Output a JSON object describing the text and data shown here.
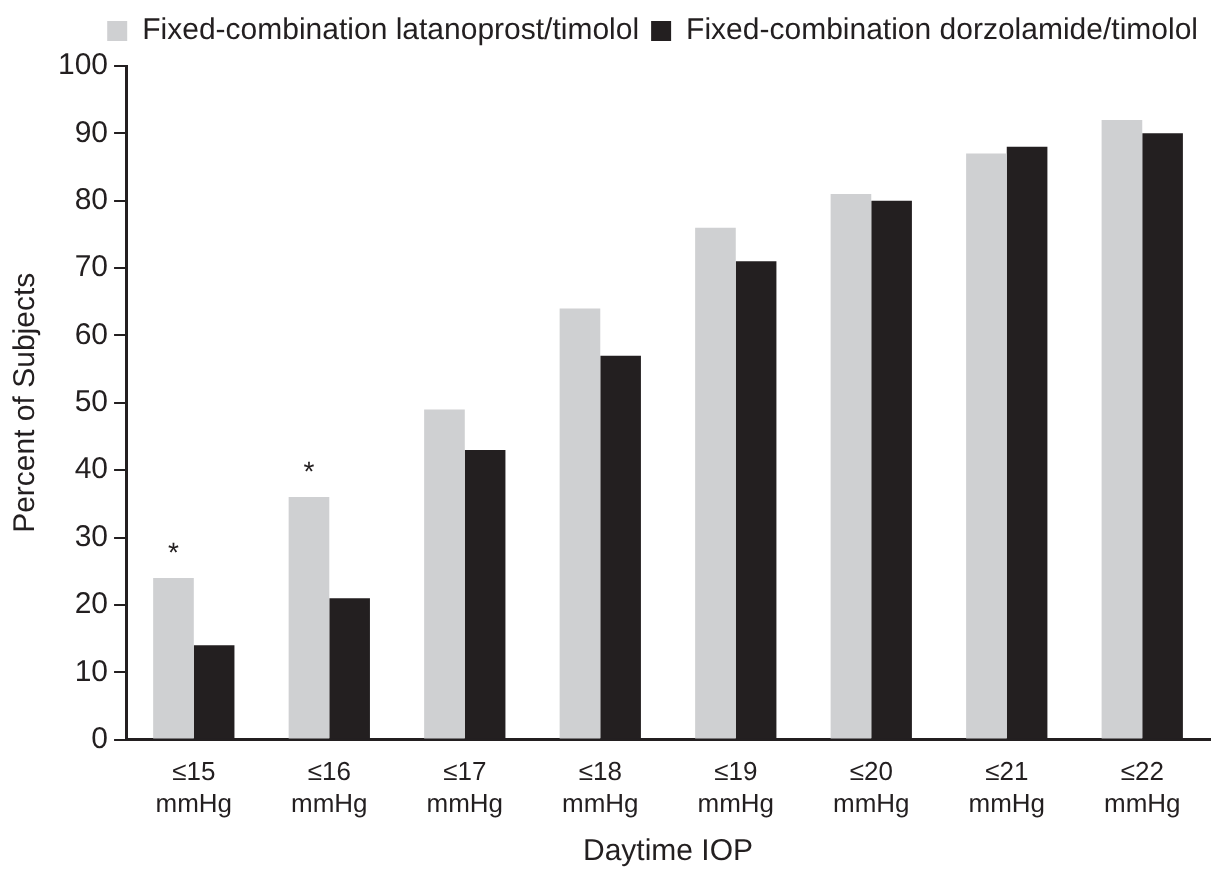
{
  "chart_data": {
    "type": "bar",
    "xlabel": "Daytime IOP",
    "ylabel": "Percent of Subjects",
    "categories": [
      "≤15 mmHg",
      "≤16 mmHg",
      "≤17 mmHg",
      "≤18 mmHg",
      "≤19 mmHg",
      "≤20 mmHg",
      "≤21 mmHg",
      "≤22 mmHg"
    ],
    "series": [
      {
        "name": "Fixed-combination latanoprost/timolol",
        "color": "#cfd0d2",
        "values": [
          24,
          36,
          49,
          64,
          76,
          81,
          87,
          92
        ]
      },
      {
        "name": "Fixed-combination dorzolamide/timolol",
        "color": "#231f20",
        "values": [
          14,
          21,
          43,
          57,
          71,
          80,
          88,
          90
        ]
      }
    ],
    "annotations": [
      "*",
      "*"
    ],
    "ylim": [
      0,
      100
    ],
    "yticks": [
      0,
      10,
      20,
      30,
      40,
      50,
      60,
      70,
      80,
      90,
      100
    ],
    "grid": false,
    "legend": "top right"
  }
}
